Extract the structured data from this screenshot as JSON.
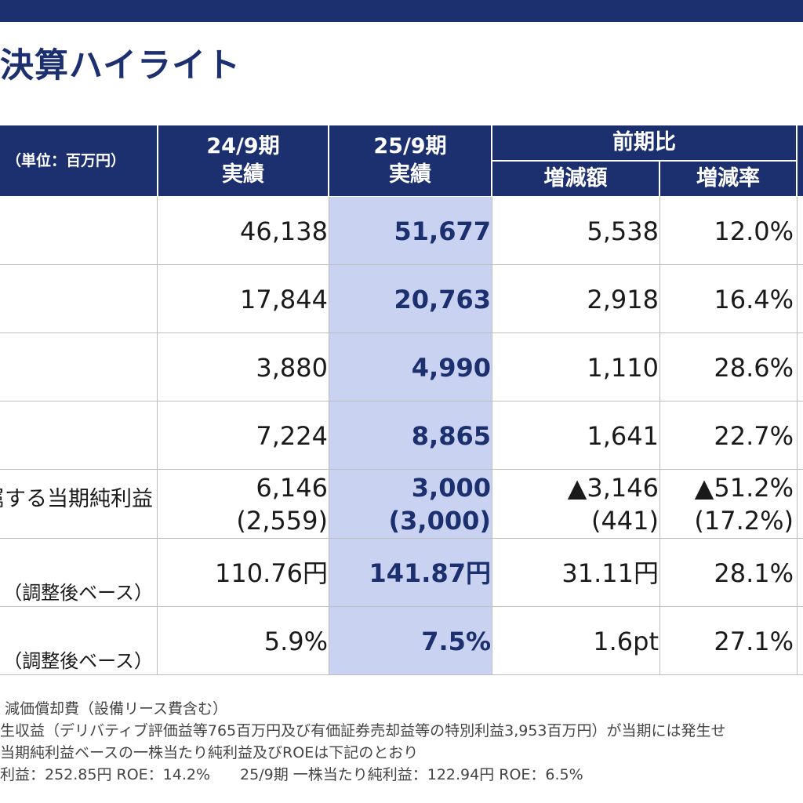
{
  "header": {
    "title": "決算ハイライト"
  },
  "table": {
    "unit_label": "（単位：百万円）",
    "columns": {
      "prev": "24/9期\n実績",
      "cur": "25/9期\n実績",
      "group": "前期比",
      "amt": "増減額",
      "rate": "増減率"
    },
    "rows": [
      {
        "label": "",
        "prev": "46,138",
        "cur": "51,677",
        "amt": "5,538",
        "rate": "12.0%"
      },
      {
        "label": "",
        "prev": "17,844",
        "cur": "20,763",
        "amt": "2,918",
        "rate": "16.4%"
      },
      {
        "label": "",
        "prev": "3,880",
        "cur": "4,990",
        "amt": "1,110",
        "rate": "28.6%"
      },
      {
        "label": "",
        "prev": "7,224",
        "cur": "8,865",
        "amt": "1,641",
        "rate": "22.7%"
      },
      {
        "label": "親会社株主に帰属する当期純利益",
        "prev": "6,146",
        "cur": "3,000",
        "amt": "▲3,146",
        "rate": "▲51.2%",
        "prev_sub": "(2,559)",
        "cur_sub": "(3,000)",
        "amt_sub": "(441)",
        "rate_sub": "(17.2%)"
      },
      {
        "label": "（調整後ベース）",
        "prev": "110.76円",
        "cur": "141.87円",
        "amt": "31.11円",
        "rate": "28.1%"
      },
      {
        "label": "（調整後ベース）",
        "prev": "5.9%",
        "cur": "7.5%",
        "amt": "1.6pt",
        "rate": "27.1%"
      }
    ]
  },
  "notes": [
    "減価償却費（設備リース費含む）",
    "生収益（デリバティブ評価益等765百万円及び有価証券売却益等の特別利益3,953百万円）が当期には発生せ",
    "当期純利益ベースの一株当たり純利益及びROEは下記のとおり",
    "利益：252.85円 ROE：14.2%　　25/9期 一株当たり純利益：122.94円 ROE：6.5%"
  ]
}
